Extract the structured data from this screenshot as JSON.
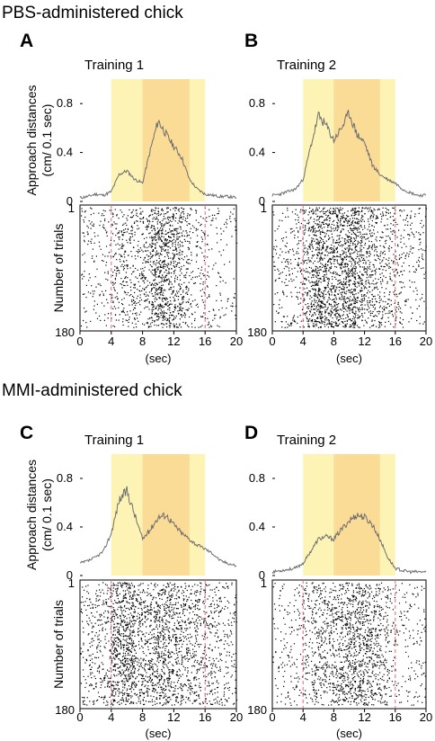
{
  "sections": [
    {
      "title": "PBS-administered chick"
    },
    {
      "title": "MMI-administered chick"
    }
  ],
  "colors": {
    "shade_light": "#fdf3b5",
    "shade_dark": "#fbdc96",
    "trace": "#6e6e6e",
    "raster_dot": "#000000",
    "guide_line": "#e46a7a"
  },
  "chart_data": [
    {
      "panel": "A",
      "title": "Training 1",
      "type": "line",
      "ylabel": "Approach distances (cm/ 0.1 sec)",
      "xlabel": "(sec)",
      "xlim": [
        0,
        20
      ],
      "ylim": [
        0,
        1
      ],
      "xticks": [
        0,
        4,
        8,
        12,
        16,
        20
      ],
      "yticks": [
        "0",
        "0.4",
        "0.8"
      ],
      "shaded_light": [
        4,
        16
      ],
      "shaded_dark": [
        8,
        14
      ],
      "x": [
        0,
        1,
        2,
        3,
        4,
        5,
        6,
        7,
        8,
        9,
        10,
        11,
        12,
        13,
        14,
        15,
        16,
        17,
        18,
        19,
        20
      ],
      "values": [
        0.03,
        0.04,
        0.06,
        0.05,
        0.08,
        0.22,
        0.25,
        0.18,
        0.15,
        0.42,
        0.66,
        0.55,
        0.45,
        0.36,
        0.18,
        0.1,
        0.06,
        0.05,
        0.04,
        0.04,
        0.03
      ],
      "raster": {
        "ylabel": "Number of trials",
        "trials_first": "1",
        "trials_last": "180",
        "guide_lines": [
          4,
          16
        ],
        "yticks": [
          "1",
          "180"
        ]
      }
    },
    {
      "panel": "B",
      "title": "Training 2",
      "type": "line",
      "ylabel": "",
      "xlabel": "(sec)",
      "xlim": [
        0,
        20
      ],
      "ylim": [
        0,
        1
      ],
      "xticks": [
        0,
        4,
        8,
        12,
        16,
        20
      ],
      "yticks": [
        "0",
        "0.4",
        "0.8"
      ],
      "shaded_light": [
        4,
        16
      ],
      "shaded_dark": [
        8,
        14
      ],
      "x": [
        0,
        1,
        2,
        3,
        4,
        5,
        6,
        7,
        8,
        9,
        10,
        11,
        12,
        13,
        14,
        15,
        16,
        17,
        18,
        19,
        20
      ],
      "values": [
        0.05,
        0.06,
        0.08,
        0.1,
        0.18,
        0.45,
        0.7,
        0.62,
        0.5,
        0.6,
        0.72,
        0.55,
        0.48,
        0.3,
        0.22,
        0.18,
        0.15,
        0.1,
        0.07,
        0.05,
        0.05
      ],
      "raster": {
        "ylabel": "",
        "trials_first": "1",
        "trials_last": "180",
        "guide_lines": [
          4,
          16
        ],
        "yticks": [
          "1",
          "180"
        ]
      }
    },
    {
      "panel": "C",
      "title": "Training 1",
      "type": "line",
      "ylabel": "Approach distances (cm/ 0.1 sec)",
      "xlabel": "(sec)",
      "xlim": [
        0,
        20
      ],
      "ylim": [
        0,
        1
      ],
      "xticks": [
        0,
        4,
        8,
        12,
        16,
        20
      ],
      "yticks": [
        "0",
        "0.4",
        "0.8"
      ],
      "shaded_light": [
        4,
        16
      ],
      "shaded_dark": [
        8,
        14
      ],
      "x": [
        0,
        1,
        2,
        3,
        4,
        5,
        6,
        7,
        8,
        9,
        10,
        11,
        12,
        13,
        14,
        15,
        16,
        17,
        18,
        19,
        20
      ],
      "values": [
        0.1,
        0.12,
        0.15,
        0.2,
        0.35,
        0.62,
        0.7,
        0.5,
        0.3,
        0.38,
        0.48,
        0.5,
        0.42,
        0.35,
        0.3,
        0.25,
        0.22,
        0.18,
        0.12,
        0.1,
        0.08
      ],
      "raster": {
        "ylabel": "Number of trials",
        "trials_first": "1",
        "trials_last": "180",
        "guide_lines": [
          4,
          16
        ],
        "yticks": [
          "1",
          "180"
        ]
      }
    },
    {
      "panel": "D",
      "title": "Training 2",
      "type": "line",
      "ylabel": "",
      "xlabel": "(sec)",
      "xlim": [
        0,
        20
      ],
      "ylim": [
        0,
        1
      ],
      "xticks": [
        0,
        4,
        8,
        12,
        16,
        20
      ],
      "yticks": [
        "0",
        "0.4",
        "0.8"
      ],
      "shaded_light": [
        4,
        16
      ],
      "shaded_dark": [
        8,
        14
      ],
      "x": [
        0,
        1,
        2,
        3,
        4,
        5,
        6,
        7,
        8,
        9,
        10,
        11,
        12,
        13,
        14,
        15,
        16,
        17,
        18,
        19,
        20
      ],
      "values": [
        0.03,
        0.04,
        0.05,
        0.06,
        0.1,
        0.2,
        0.3,
        0.32,
        0.3,
        0.38,
        0.45,
        0.5,
        0.48,
        0.42,
        0.3,
        0.15,
        0.06,
        0.04,
        0.03,
        0.03,
        0.03
      ],
      "raster": {
        "ylabel": "",
        "trials_first": "1",
        "trials_last": "180",
        "guide_lines": [
          4,
          16
        ],
        "yticks": [
          "1",
          "180"
        ]
      }
    }
  ]
}
